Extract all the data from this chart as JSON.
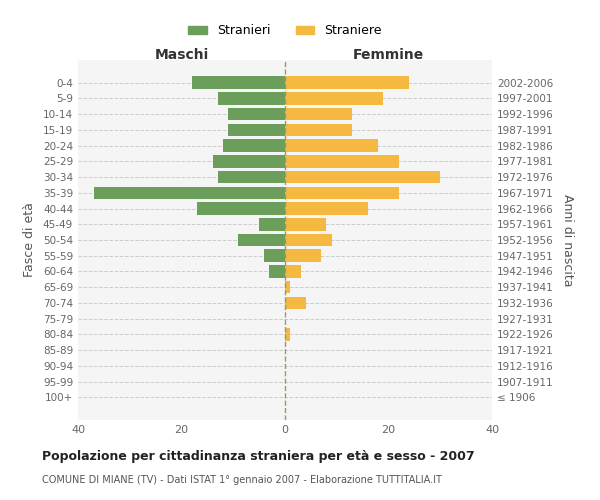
{
  "age_groups": [
    "100+",
    "95-99",
    "90-94",
    "85-89",
    "80-84",
    "75-79",
    "70-74",
    "65-69",
    "60-64",
    "55-59",
    "50-54",
    "45-49",
    "40-44",
    "35-39",
    "30-34",
    "25-29",
    "20-24",
    "15-19",
    "10-14",
    "5-9",
    "0-4"
  ],
  "birth_years": [
    "≤ 1906",
    "1907-1911",
    "1912-1916",
    "1917-1921",
    "1922-1926",
    "1927-1931",
    "1932-1936",
    "1937-1941",
    "1942-1946",
    "1947-1951",
    "1952-1956",
    "1957-1961",
    "1962-1966",
    "1967-1971",
    "1972-1976",
    "1977-1981",
    "1982-1986",
    "1987-1991",
    "1992-1996",
    "1997-2001",
    "2002-2006"
  ],
  "males": [
    0,
    0,
    0,
    0,
    0,
    0,
    0,
    0,
    3,
    4,
    9,
    5,
    17,
    37,
    13,
    14,
    12,
    11,
    11,
    13,
    18
  ],
  "females": [
    0,
    0,
    0,
    0,
    1,
    0,
    4,
    1,
    3,
    7,
    9,
    8,
    16,
    22,
    30,
    22,
    18,
    13,
    13,
    19,
    24
  ],
  "male_color": "#6a9e5a",
  "female_color": "#f5b942",
  "background_color": "#ffffff",
  "grid_color": "#cccccc",
  "title": "Popolazione per cittadinanza straniera per età e sesso - 2007",
  "subtitle": "COMUNE DI MIANE (TV) - Dati ISTAT 1° gennaio 2007 - Elaborazione TUTTITALIA.IT",
  "xlabel_left": "Maschi",
  "xlabel_right": "Femmine",
  "ylabel_left": "Fasce di età",
  "ylabel_right": "Anni di nascita",
  "legend_male": "Stranieri",
  "legend_female": "Straniere",
  "xlim": 40,
  "bar_height": 0.8
}
